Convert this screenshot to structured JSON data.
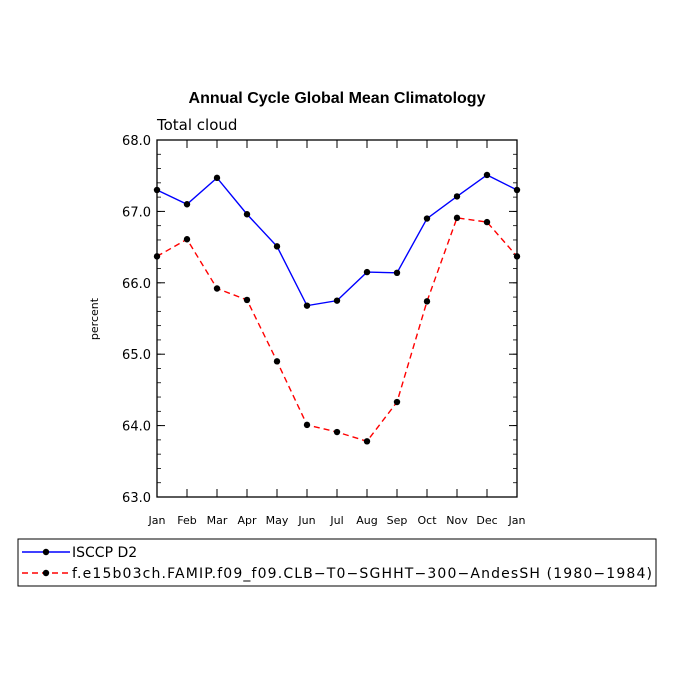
{
  "chart_data": {
    "type": "line",
    "title": "Annual Cycle Global Mean Climatology",
    "subtitle": "Total cloud",
    "xlabel": "",
    "ylabel": "percent",
    "ylim": [
      63.0,
      68.0
    ],
    "y_ticks": [
      "63.0",
      "64.0",
      "65.0",
      "66.0",
      "67.0",
      "68.0"
    ],
    "categories": [
      "Jan",
      "Feb",
      "Mar",
      "Apr",
      "May",
      "Jun",
      "Jul",
      "Aug",
      "Sep",
      "Oct",
      "Nov",
      "Dec",
      "Jan"
    ],
    "grid": false,
    "legend_position": "bottom",
    "series": [
      {
        "name": "ISCCP D2",
        "color": "#0000ff",
        "line_style": "solid",
        "marker": "circle",
        "values": [
          67.3,
          67.1,
          67.47,
          66.96,
          66.51,
          65.68,
          65.75,
          66.15,
          66.14,
          66.9,
          67.21,
          67.51,
          67.3
        ]
      },
      {
        "name": "f.e15b03ch.FAMIP.f09_f09.CLB−T0−SGHHT−300−AndesSH (1980−1984)",
        "color": "#ff0000",
        "line_style": "dashed",
        "marker": "circle",
        "values": [
          66.37,
          66.61,
          65.92,
          65.76,
          64.9,
          64.01,
          63.91,
          63.78,
          64.33,
          65.74,
          66.91,
          66.85,
          66.37
        ]
      }
    ]
  }
}
